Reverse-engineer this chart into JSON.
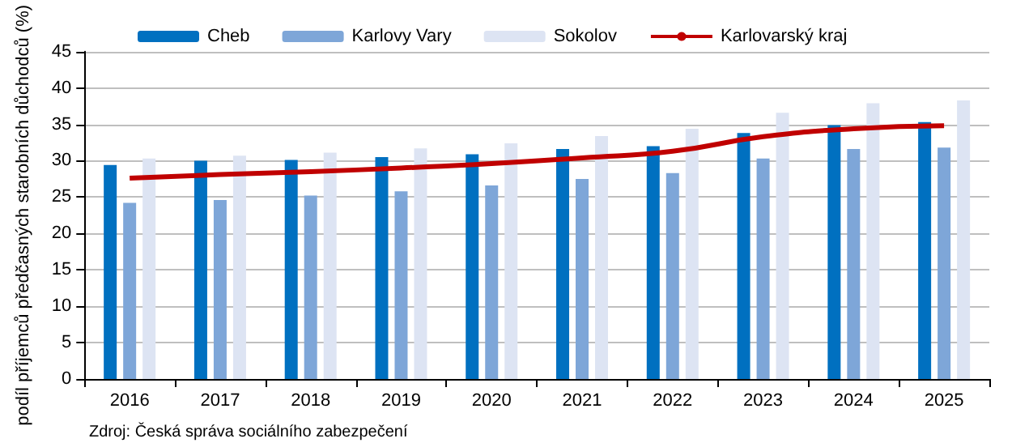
{
  "chart_data": {
    "type": "bar",
    "ylabel": "podíl příjemců předčasných starobních důchodců (%)",
    "categories": [
      "2016",
      "2017",
      "2018",
      "2019",
      "2020",
      "2021",
      "2022",
      "2023",
      "2024",
      "2025"
    ],
    "series": [
      {
        "name": "Cheb",
        "color": "#0070c0",
        "values": [
          29.4,
          30.0,
          30.1,
          30.5,
          30.9,
          31.6,
          32.0,
          33.8,
          34.9,
          35.3
        ]
      },
      {
        "name": "Karlovy Vary",
        "color": "#7ea6d8",
        "values": [
          24.2,
          24.6,
          25.2,
          25.8,
          26.6,
          27.5,
          28.3,
          30.3,
          31.6,
          31.8
        ]
      },
      {
        "name": "Sokolov",
        "color": "#dde4f3",
        "values": [
          30.3,
          30.7,
          31.1,
          31.7,
          32.4,
          33.4,
          34.4,
          36.6,
          37.9,
          38.3
        ]
      },
      {
        "name": "Karlovarský kraj",
        "type": "line",
        "color": "#c00000",
        "values": [
          27.6,
          28.1,
          28.5,
          29.0,
          29.6,
          30.4,
          31.3,
          33.3,
          34.4,
          34.8
        ]
      }
    ],
    "ylim": [
      0,
      45
    ],
    "yticks": [
      0,
      5,
      10,
      15,
      20,
      25,
      30,
      35,
      40,
      45
    ],
    "grid": "y",
    "legend": "top",
    "marker": "none",
    "annotations": [
      "Zdroj: Česká správa sociálního zabezpečení"
    ]
  }
}
